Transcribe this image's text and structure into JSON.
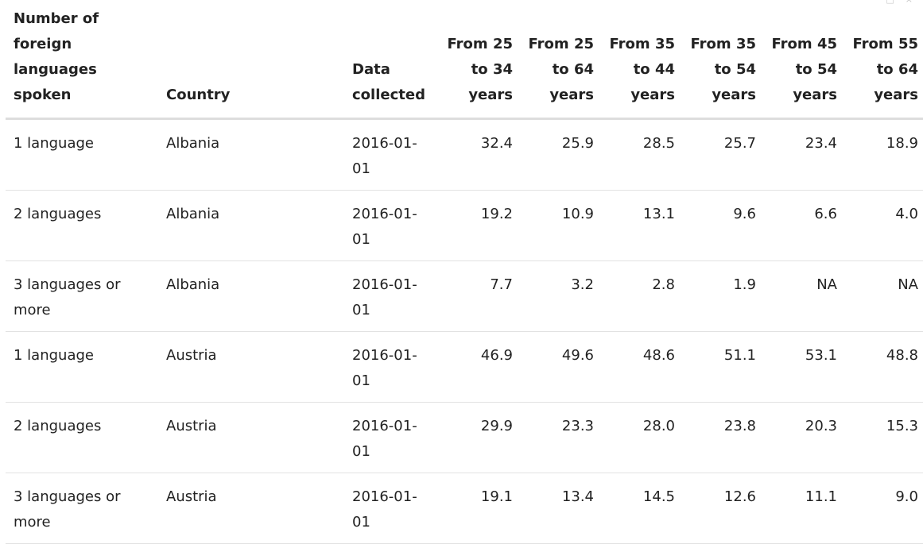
{
  "table": {
    "headers": {
      "languages": "Number of foreign languages spoken",
      "country": "Country",
      "date": "Data collected",
      "age_25_34": "From 25 to 34 years",
      "age_25_64": "From 25 to 64 years",
      "age_35_44": "From 35 to 44 years",
      "age_35_54": "From 35 to 54 years",
      "age_45_54": "From 45 to 54 years",
      "age_55_64": "From 55 to 64 years"
    },
    "rows": [
      {
        "languages": "1 language",
        "country": "Albania",
        "date": "2016-01-01",
        "age_25_34": "32.4",
        "age_25_64": "25.9",
        "age_35_44": "28.5",
        "age_35_54": "25.7",
        "age_45_54": "23.4",
        "age_55_64": "18.9"
      },
      {
        "languages": "2 languages",
        "country": "Albania",
        "date": "2016-01-01",
        "age_25_34": "19.2",
        "age_25_64": "10.9",
        "age_35_44": "13.1",
        "age_35_54": "9.6",
        "age_45_54": "6.6",
        "age_55_64": "4.0"
      },
      {
        "languages": "3 languages or more",
        "country": "Albania",
        "date": "2016-01-01",
        "age_25_34": "7.7",
        "age_25_64": "3.2",
        "age_35_44": "2.8",
        "age_35_54": "1.9",
        "age_45_54": "NA",
        "age_55_64": "NA"
      },
      {
        "languages": "1 language",
        "country": "Austria",
        "date": "2016-01-01",
        "age_25_34": "46.9",
        "age_25_64": "49.6",
        "age_35_44": "48.6",
        "age_35_54": "51.1",
        "age_45_54": "53.1",
        "age_55_64": "48.8"
      },
      {
        "languages": "2 languages",
        "country": "Austria",
        "date": "2016-01-01",
        "age_25_34": "29.9",
        "age_25_64": "23.3",
        "age_35_44": "28.0",
        "age_35_54": "23.8",
        "age_45_54": "20.3",
        "age_55_64": "15.3"
      },
      {
        "languages": "3 languages or more",
        "country": "Austria",
        "date": "2016-01-01",
        "age_25_34": "19.1",
        "age_25_64": "13.4",
        "age_35_44": "14.5",
        "age_35_54": "12.6",
        "age_45_54": "11.1",
        "age_55_64": "9.0"
      }
    ]
  },
  "toolbar": {
    "icons": [
      "expand-icon",
      "close-icon"
    ]
  }
}
